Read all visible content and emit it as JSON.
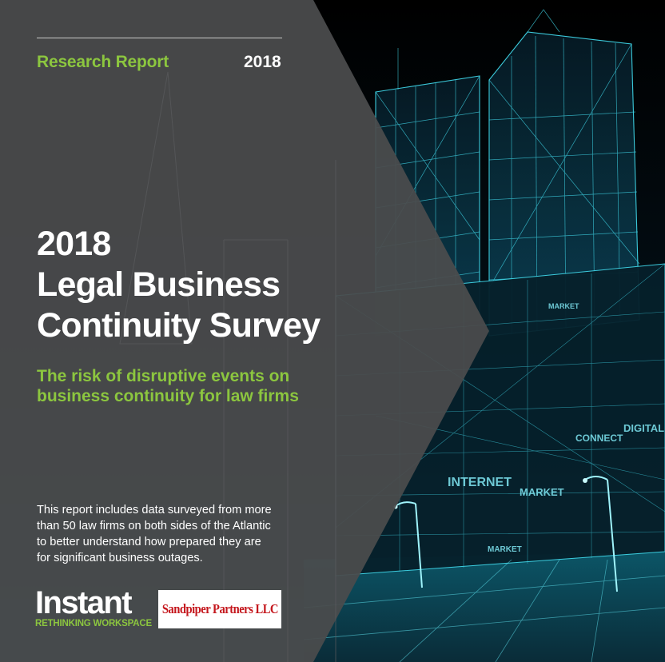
{
  "header": {
    "kicker": "Research Report",
    "year": "2018"
  },
  "title": {
    "line1": "2018",
    "line2": "Legal Business",
    "line3": "Continuity Survey"
  },
  "subtitle": {
    "line1": "The risk of disruptive events on",
    "line2": "business continuity for law firms"
  },
  "description": {
    "line1": "This report includes data surveyed from more",
    "line2": "than 50 law firms on both sides of the Atlantic",
    "line3": "to better understand how prepared they are",
    "line4": "for significant business outages."
  },
  "logos": {
    "instant_word": "Instant",
    "instant_tagline": "RETHINKING WORKSPACE",
    "sandpiper": "Sandpiper Partners LLC"
  },
  "background_labels": {
    "market1": "MARKET",
    "market2": "MARKET",
    "internet": "INTERNET",
    "connect": "CONNECT",
    "digital": "DIGITAL",
    "market3": "MARKET"
  },
  "colors": {
    "panel": "#4a4b4d",
    "accent_green": "#8cc63f",
    "wireframe": "#3fd4e6",
    "sandpiper_red": "#c4161c"
  }
}
